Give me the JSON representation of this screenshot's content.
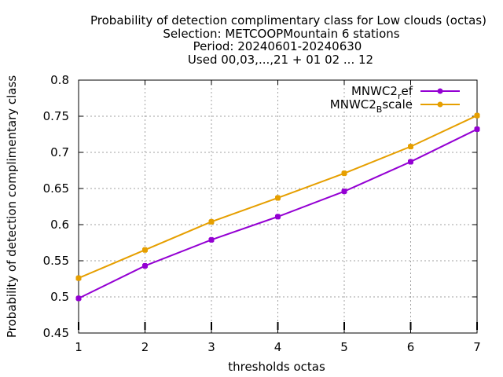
{
  "chart_data": {
    "type": "line",
    "title": [
      "Probability of detection complimentary class  for Low clouds (octas)",
      "Selection: METCOOPMountain      6 stations",
      "Period: 20240601-20240630",
      "Used 00,03,...,21 + 01 02 ... 12"
    ],
    "xlabel": "thresholds octas",
    "ylabel": "Probability of detection complimentary class",
    "xlim": [
      1,
      7
    ],
    "ylim": [
      0.45,
      0.8
    ],
    "x_ticks": [
      "1",
      "2",
      "3",
      "4",
      "5",
      "6",
      "7"
    ],
    "y_ticks": [
      "0.45",
      "0.5",
      "0.55",
      "0.6",
      "0.65",
      "0.7",
      "0.75",
      "0.8"
    ],
    "grid": true,
    "legend_position": "top-right",
    "x": [
      1,
      2,
      3,
      4,
      5,
      6,
      7
    ],
    "series": [
      {
        "name": "MNWC2_ref",
        "legend_main": "MNWC2",
        "legend_sub": "r",
        "legend_rest": "ef",
        "color": "#9400d3",
        "values": [
          0.498,
          0.543,
          0.579,
          0.611,
          0.646,
          0.687,
          0.732
        ]
      },
      {
        "name": "MNWC2_Bscale",
        "legend_main": "MNWC2",
        "legend_sub": "B",
        "legend_rest": "scale",
        "color": "#e69f00",
        "values": [
          0.526,
          0.565,
          0.604,
          0.637,
          0.671,
          0.708,
          0.751
        ]
      }
    ]
  }
}
